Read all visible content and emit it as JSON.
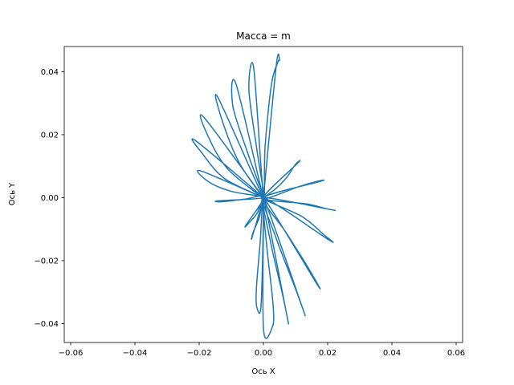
{
  "chart_data": {
    "type": "line",
    "title": "Масса = m",
    "xlabel": "Ось X",
    "ylabel": "Ось Y",
    "xlim": [
      -0.062,
      0.062
    ],
    "ylim": [
      -0.046,
      0.048
    ],
    "xticks": [
      -0.06,
      -0.04,
      -0.02,
      0.0,
      0.02,
      0.04,
      0.06
    ],
    "xtick_labels": [
      "−0.06",
      "−0.04",
      "−0.02",
      "0.00",
      "0.02",
      "0.04",
      "0.06"
    ],
    "yticks": [
      -0.04,
      -0.02,
      0.0,
      0.02,
      0.04
    ],
    "ytick_labels": [
      "−0.04",
      "−0.02",
      "0.00",
      "0.02",
      "0.04"
    ],
    "grid": false,
    "series": [
      {
        "color": "#1f77b4",
        "x": [
          0.0,
          0.004,
          0.0073,
          0.0099,
          0.0107,
          0.0,
          0.011,
          0.016,
          0.0178,
          0.0,
          0.0135,
          0.0195,
          0.021,
          0.0,
          0.012,
          0.0185,
          0.0205,
          0.0,
          0.007,
          0.0135,
          0.017,
          0.0,
          0.004,
          0.01,
          0.0125,
          0.0,
          0.0022,
          0.006,
          0.0075,
          0.0,
          0.001,
          0.003,
          0.0028,
          0.0,
          0.0,
          -0.001,
          -0.0022,
          -0.002,
          -0.0007,
          0.0,
          -0.0012,
          -0.0032,
          -0.0035,
          0.0,
          -0.002,
          -0.0045,
          -0.0055,
          0.0,
          -0.006,
          -0.013,
          -0.014,
          0.0,
          -0.01,
          -0.017,
          -0.0195,
          0.0,
          -0.012,
          -0.019,
          -0.021,
          0.0,
          -0.011,
          -0.017,
          -0.0185,
          0.0,
          -0.0075,
          -0.013,
          -0.014,
          0.0,
          -0.0045,
          -0.0095,
          -0.0085,
          0.0,
          -0.002,
          -0.0045,
          -0.003,
          0.0,
          0.0005,
          0.0025,
          0.0045,
          0.005,
          0.004,
          0.0
        ],
        "y": [
          0.0,
          0.003,
          0.0065,
          0.0105,
          0.011,
          0.0,
          0.0035,
          0.005,
          0.0052,
          0.0,
          -0.002,
          -0.0035,
          -0.0038,
          0.0,
          -0.006,
          -0.0115,
          -0.0135,
          0.0,
          -0.011,
          -0.0215,
          -0.028,
          0.0,
          -0.013,
          -0.029,
          -0.036,
          0.0,
          -0.014,
          -0.031,
          -0.0385,
          0.0,
          -0.015,
          -0.034,
          -0.041,
          -0.0415,
          0.0,
          -0.014,
          -0.029,
          -0.035,
          -0.0335,
          0.0,
          -0.006,
          -0.011,
          -0.0125,
          0.0,
          -0.005,
          -0.008,
          -0.0088,
          0.0,
          -0.0005,
          -0.0013,
          -0.001,
          0.0,
          0.002,
          0.005,
          0.0085,
          0.0,
          0.006,
          0.014,
          0.018,
          0.0,
          0.009,
          0.019,
          0.0255,
          0.0,
          0.011,
          0.025,
          0.0315,
          0.0,
          0.013,
          0.029,
          0.036,
          0.0,
          0.015,
          0.034,
          0.041,
          0.0,
          0.016,
          0.036,
          0.043,
          0.0435,
          0.042,
          0.0
        ]
      }
    ]
  }
}
